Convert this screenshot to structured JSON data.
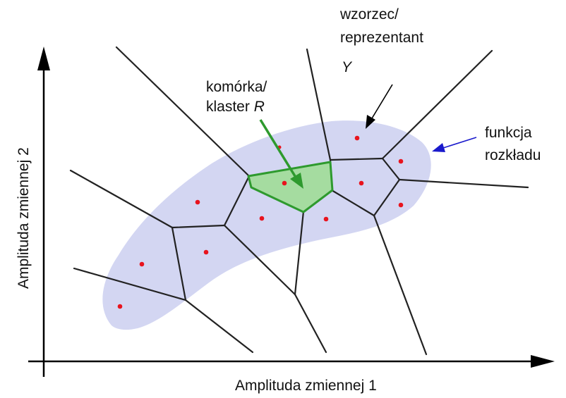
{
  "axes": {
    "x_label": "Amplituda zmiennej 1",
    "y_label": "Amplituda zmiennej 2"
  },
  "annotations": {
    "prototype_line1": "wzorzec/",
    "prototype_line2": "reprezentant",
    "prototype_symbol": "Y",
    "cell_line1": "komórka/",
    "cell_line2_prefix": "klaster ",
    "cell_symbol": "R",
    "distribution_line1": "funkcja",
    "distribution_line2": "rozkładu"
  },
  "colors": {
    "distribution_fill": "#d3d6f2",
    "cell_fill": "#a5dca0",
    "cell_stroke": "#2e9a2e",
    "cell_arrow": "#2e9a2e",
    "prototype_dot": "#e8141e",
    "distribution_arrow": "#1a1acc",
    "axis": "#000000",
    "edge": "#222222"
  }
}
